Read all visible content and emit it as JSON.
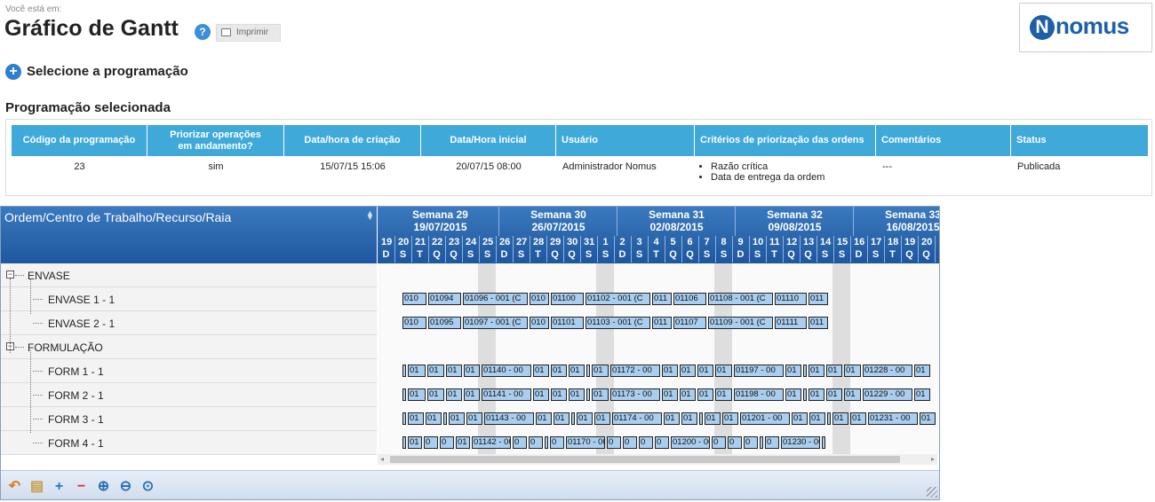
{
  "breadcrumb": "Você está em:",
  "page": {
    "title": "Gráfico de Gantt",
    "help_icon": "help-icon",
    "print_label": "Imprimir",
    "logo_text": "nomus",
    "logo_letter": "N"
  },
  "select_programming": {
    "label": "Selecione a programação",
    "icon": "plus-circle-icon"
  },
  "selected_section": {
    "title": "Programação selecionada",
    "columns": [
      "Código da programação",
      "Priorizar operações em andamento?",
      "Data/hora de criação",
      "Data/Hora inicial",
      "Usuário",
      "Critérios de priorização das ordens",
      "Comentários",
      "Status"
    ],
    "row": {
      "code": "23",
      "prioritize": "sim",
      "created": "15/07/15 15:06",
      "start": "20/07/15 08:00",
      "user": "Administrador Nomus",
      "criteria": [
        "Razão crítica",
        "Data de entrega da ordem"
      ],
      "comments": "---",
      "status": "Publicada"
    }
  },
  "gantt": {
    "tree_header": "Ordem/Centro de Trabalho/Recurso/Raia",
    "weeks": [
      {
        "label": "Semana 29",
        "date": "19/07/2015"
      },
      {
        "label": "Semana 30",
        "date": "26/07/2015"
      },
      {
        "label": "Semana 31",
        "date": "02/08/2015"
      },
      {
        "label": "Semana 32",
        "date": "09/08/2015"
      },
      {
        "label": "Semana 33",
        "date": "16/08/2015"
      }
    ],
    "days": [
      "19",
      "20",
      "21",
      "22",
      "23",
      "24",
      "25",
      "26",
      "27",
      "28",
      "29",
      "30",
      "31",
      "1",
      "2",
      "3",
      "4",
      "5",
      "6",
      "7",
      "8",
      "9",
      "10",
      "11",
      "12",
      "13",
      "14",
      "15",
      "16",
      "17",
      "18",
      "19",
      "20"
    ],
    "day_letters": [
      "D",
      "S",
      "T",
      "Q",
      "Q",
      "S",
      "S",
      "D",
      "S",
      "T",
      "Q",
      "Q",
      "S",
      "S",
      "D",
      "S",
      "T",
      "Q",
      "Q",
      "S",
      "S",
      "D",
      "S",
      "T",
      "Q",
      "Q",
      "S",
      "S",
      "D",
      "S",
      "T",
      "Q",
      "Q"
    ],
    "tree": [
      {
        "label": "ENVASE",
        "level": 0
      },
      {
        "label": "ENVASE 1 - 1",
        "level": 1
      },
      {
        "label": "ENVASE 2 - 1",
        "level": 1
      },
      {
        "label": "FORMULAÇÃO",
        "level": 0
      },
      {
        "label": "FORM 1 - 1",
        "level": 1
      },
      {
        "label": "FORM 2 - 1",
        "level": 1
      },
      {
        "label": "FORM 3 - 1",
        "level": 1
      },
      {
        "label": "FORM 4 - 1",
        "level": 1
      }
    ],
    "bar_rows": [
      {
        "row": 1,
        "bars": [
          [
            "010",
            27
          ],
          [
            "01094",
            37
          ],
          [
            "01096 - 001 (C",
            73
          ],
          [
            "010",
            22
          ],
          [
            "01100",
            37
          ],
          [
            "01102 - 001 (C",
            73
          ],
          [
            "011",
            22
          ],
          [
            "01106",
            37
          ],
          [
            "01108 - 001 (C",
            73
          ],
          [
            "01110",
            36
          ],
          [
            "011",
            22
          ]
        ]
      },
      {
        "row": 2,
        "bars": [
          [
            "010",
            27
          ],
          [
            "01095",
            37
          ],
          [
            "01097 - 001 (C",
            73
          ],
          [
            "010",
            22
          ],
          [
            "01101",
            37
          ],
          [
            "01103 - 001 (C",
            73
          ],
          [
            "011",
            22
          ],
          [
            "01107",
            37
          ],
          [
            "01109 - 001 (C",
            73
          ],
          [
            "01111",
            36
          ],
          [
            "011",
            22
          ]
        ]
      },
      {
        "row": 4,
        "bars": [
          [
            "",
            4
          ],
          [
            "01",
            20
          ],
          [
            "01",
            19
          ],
          [
            "01",
            18
          ],
          [
            "01",
            18
          ],
          [
            "01140 - 00",
            56
          ],
          [
            "01",
            18
          ],
          [
            "01",
            18
          ],
          [
            "01",
            18
          ],
          [
            "",
            4
          ],
          [
            "01",
            19
          ],
          [
            "01172 - 00",
            56
          ],
          [
            "01",
            18
          ],
          [
            "01",
            18
          ],
          [
            "01",
            18
          ],
          [
            "01",
            19
          ],
          [
            "01197 - 00",
            56
          ],
          [
            "01",
            18
          ],
          [
            "",
            4
          ],
          [
            "01",
            18
          ],
          [
            "01",
            18
          ],
          [
            "01",
            19
          ],
          [
            "01228 - 00",
            56
          ],
          [
            "01",
            18
          ]
        ]
      },
      {
        "row": 5,
        "bars": [
          [
            "",
            4
          ],
          [
            "01",
            20
          ],
          [
            "01",
            19
          ],
          [
            "01",
            18
          ],
          [
            "01",
            18
          ],
          [
            "01141 - 00",
            56
          ],
          [
            "01",
            18
          ],
          [
            "01",
            18
          ],
          [
            "01",
            18
          ],
          [
            "",
            4
          ],
          [
            "01",
            19
          ],
          [
            "01173 - 00",
            56
          ],
          [
            "01",
            18
          ],
          [
            "01",
            18
          ],
          [
            "01",
            18
          ],
          [
            "01",
            19
          ],
          [
            "01198 - 00",
            56
          ],
          [
            "01",
            18
          ],
          [
            "",
            4
          ],
          [
            "01",
            18
          ],
          [
            "01",
            18
          ],
          [
            "01",
            19
          ],
          [
            "01229 - 00",
            56
          ],
          [
            "01",
            18
          ]
        ]
      },
      {
        "row": 6,
        "bars": [
          [
            "",
            4
          ],
          [
            "01",
            18
          ],
          [
            "01",
            18
          ],
          [
            "",
            4
          ],
          [
            "01",
            18
          ],
          [
            "01",
            18
          ],
          [
            "01143 - 00",
            56
          ],
          [
            "01",
            18
          ],
          [
            "01",
            18
          ],
          [
            "",
            4
          ],
          [
            "01",
            18
          ],
          [
            "01",
            18
          ],
          [
            "01174 - 00",
            56
          ],
          [
            "01",
            18
          ],
          [
            "01",
            18
          ],
          [
            "",
            4
          ],
          [
            "01",
            18
          ],
          [
            "01",
            18
          ],
          [
            "01201 - 00",
            56
          ],
          [
            "01",
            18
          ],
          [
            "01",
            18
          ],
          [
            "",
            4
          ],
          [
            "01",
            18
          ],
          [
            "01",
            18
          ],
          [
            "01231 - 00",
            56
          ],
          [
            "01",
            18
          ]
        ]
      },
      {
        "row": 7,
        "bars": [
          [
            "",
            4
          ],
          [
            "01",
            16
          ],
          [
            "0",
            16
          ],
          [
            "0",
            16
          ],
          [
            "01",
            16
          ],
          [
            "01142 - 00",
            44
          ],
          [
            "0",
            16
          ],
          [
            "0",
            16
          ],
          [
            "",
            4
          ],
          [
            "0",
            16
          ],
          [
            "01170 - 00",
            44
          ],
          [
            "0",
            16
          ],
          [
            "0",
            16
          ],
          [
            "0",
            16
          ],
          [
            "0",
            16
          ],
          [
            "01200 - 00",
            44
          ],
          [
            "0",
            16
          ],
          [
            "0",
            16
          ],
          [
            "0",
            16
          ],
          [
            "",
            4
          ],
          [
            "0",
            16
          ],
          [
            "01230 - 00",
            44
          ],
          [
            "",
            4
          ]
        ]
      }
    ],
    "toolbar_icons": [
      "undo-icon",
      "print-icon",
      "expand-all-icon",
      "collapse-all-icon",
      "zoom-in-icon",
      "zoom-out-icon",
      "zoom-fit-icon"
    ]
  }
}
